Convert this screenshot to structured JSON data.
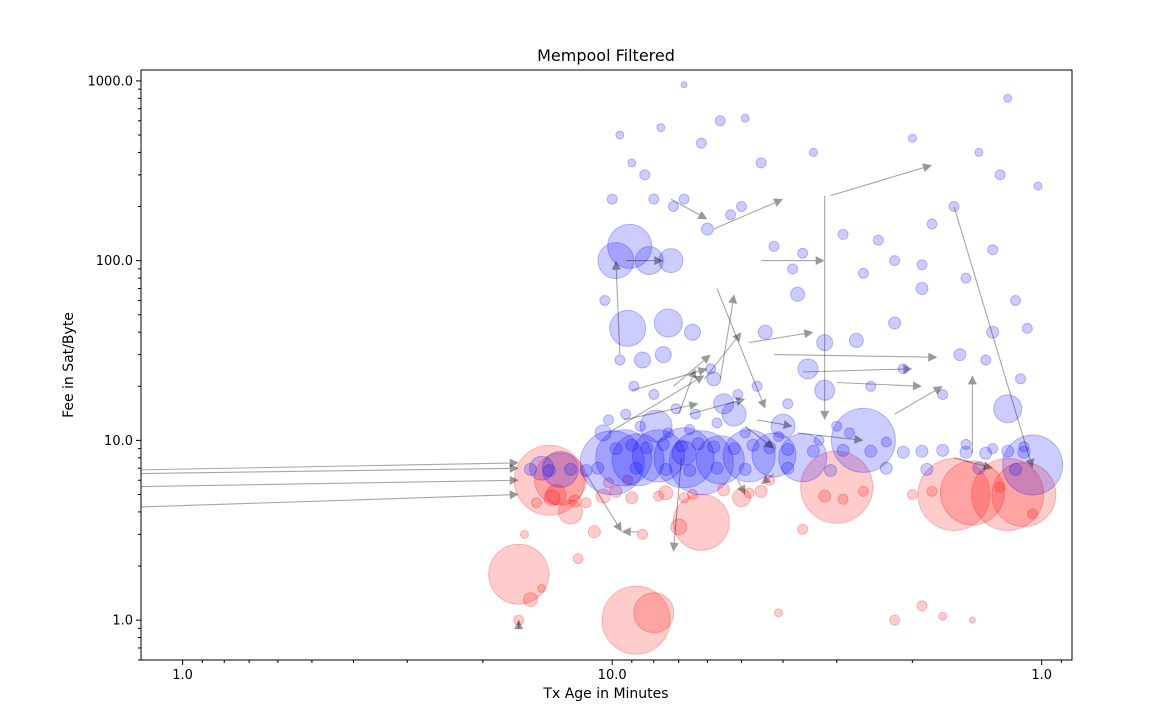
{
  "chart_data": {
    "type": "scatter",
    "title": "Mempool Filtered",
    "xlabel": "Tx Age in Minutes",
    "ylabel": "Fee in Sat/Byte",
    "x_scale": "log-reversed",
    "y_scale": "log",
    "xlim": [
      125,
      0.85
    ],
    "ylim": [
      0.6,
      1150
    ],
    "x_tick_labels": [
      "10.0",
      "1.0"
    ],
    "y_tick_labels": [
      "1000.0",
      "100.0",
      "10.0",
      "1.0"
    ],
    "grid": false,
    "colors": {
      "low_fee": "#ff0000",
      "high_fee": "#0000ff",
      "arrows": "#000000"
    },
    "series": [
      {
        "points": [
          [
            16.5,
            1.8,
            30
          ],
          [
            8.8,
            1.0,
            34
          ],
          [
            6.2,
            3.5,
            28
          ],
          [
            8.0,
            1.1,
            20
          ],
          [
            14.0,
            6.0,
            35
          ],
          [
            13.2,
            6.1,
            26
          ],
          [
            3.0,
            5.5,
            36
          ],
          [
            1.6,
            5.0,
            36
          ],
          [
            1.45,
            5.1,
            32
          ],
          [
            1.2,
            5.0,
            36
          ],
          [
            1.1,
            5.0,
            32
          ],
          [
            13.5,
            5.0,
            10
          ],
          [
            12.5,
            4.0,
            12
          ],
          [
            15.5,
            1.3,
            7
          ],
          [
            16.5,
            1.0,
            5
          ],
          [
            7.0,
            3.3,
            8
          ],
          [
            5.0,
            4.8,
            9
          ],
          [
            3.6,
            3.2,
            5
          ],
          [
            2.2,
            1.0,
            5
          ],
          [
            1.9,
            1.2,
            5
          ],
          [
            1.7,
            1.05,
            4
          ],
          [
            1.45,
            1.0,
            3
          ],
          [
            4.1,
            1.1,
            4
          ],
          [
            12.0,
            2.2,
            5
          ],
          [
            11.0,
            3.1,
            6
          ],
          [
            9.0,
            4.8,
            6
          ],
          [
            8.5,
            3.0,
            5
          ],
          [
            10.5,
            4.9,
            7
          ],
          [
            9.8,
            5.2,
            6
          ],
          [
            11.5,
            4.5,
            5
          ],
          [
            15.0,
            4.5,
            5
          ],
          [
            13.8,
            4.8,
            8
          ],
          [
            12.2,
            4.6,
            6
          ],
          [
            7.5,
            5.1,
            7
          ],
          [
            6.8,
            4.8,
            5
          ],
          [
            5.5,
            5.3,
            6
          ],
          [
            4.5,
            5.2,
            6
          ],
          [
            3.2,
            4.9,
            6
          ],
          [
            2.9,
            4.7,
            5
          ],
          [
            2.6,
            5.2,
            5
          ],
          [
            2.0,
            5.0,
            5
          ],
          [
            1.8,
            5.2,
            5
          ],
          [
            1.25,
            5.5,
            5
          ],
          [
            1.05,
            3.9,
            5
          ],
          [
            14.6,
            1.5,
            4
          ],
          [
            16.0,
            3.0,
            4
          ],
          [
            10.2,
            5.8,
            5
          ],
          [
            9.2,
            6.0,
            5
          ],
          [
            7.8,
            4.9,
            5
          ],
          [
            6.5,
            5.0,
            5
          ],
          [
            4.8,
            5.1,
            5
          ],
          [
            4.3,
            6.0,
            5
          ]
        ]
      },
      {
        "points": [
          [
            10.0,
            7.5,
            32
          ],
          [
            9.4,
            8.0,
            28
          ],
          [
            8.7,
            7.8,
            26
          ],
          [
            7.8,
            8.2,
            26
          ],
          [
            6.8,
            8.0,
            30
          ],
          [
            6.2,
            7.5,
            32
          ],
          [
            5.6,
            7.8,
            24
          ],
          [
            4.8,
            8.2,
            26
          ],
          [
            4.2,
            8.3,
            22
          ],
          [
            3.6,
            8.0,
            24
          ],
          [
            2.6,
            10.0,
            32
          ],
          [
            1.05,
            7.3,
            30
          ],
          [
            9.8,
            100.0,
            18
          ],
          [
            9.1,
            120.0,
            22
          ],
          [
            8.2,
            100.0,
            14
          ],
          [
            7.3,
            100.0,
            12
          ],
          [
            9.2,
            42.0,
            18
          ],
          [
            7.4,
            45.0,
            14
          ],
          [
            7.9,
            12.0,
            16
          ],
          [
            3.5,
            25.0,
            10
          ],
          [
            3.2,
            19.0,
            10
          ],
          [
            1.2,
            15.0,
            14
          ],
          [
            13.2,
            6.9,
            18
          ],
          [
            14.6,
            7.0,
            12
          ],
          [
            5.5,
            16.0,
            10
          ],
          [
            6.8,
            8.5,
            12
          ],
          [
            5.2,
            14.0,
            12
          ],
          [
            4.0,
            12.0,
            12
          ],
          [
            10.5,
            11.0,
            8
          ],
          [
            8.5,
            28.0,
            8
          ],
          [
            7.6,
            30.0,
            8
          ],
          [
            6.5,
            40.0,
            8
          ],
          [
            5.8,
            22.0,
            7
          ],
          [
            4.4,
            40.0,
            7
          ],
          [
            3.7,
            65.0,
            7
          ],
          [
            3.2,
            35.0,
            8
          ],
          [
            2.7,
            36.0,
            7
          ],
          [
            2.2,
            45.0,
            6
          ],
          [
            1.9,
            70.0,
            6
          ],
          [
            1.55,
            30.0,
            6
          ],
          [
            1.3,
            40.0,
            6
          ],
          [
            1.08,
            42.0,
            5
          ],
          [
            9.6,
            500.0,
            4
          ],
          [
            9.0,
            350.0,
            4
          ],
          [
            7.7,
            550.0,
            4
          ],
          [
            6.2,
            450.0,
            5
          ],
          [
            5.6,
            600.0,
            5
          ],
          [
            4.9,
            620.0,
            4
          ],
          [
            3.4,
            400.0,
            4
          ],
          [
            2.0,
            480.0,
            4
          ],
          [
            1.4,
            400.0,
            4
          ],
          [
            1.2,
            800.0,
            4
          ],
          [
            1.02,
            260.0,
            4
          ],
          [
            6.8,
            950.0,
            3
          ],
          [
            8.4,
            300.0,
            5
          ],
          [
            7.2,
            200.0,
            5
          ],
          [
            6.0,
            150.0,
            6
          ],
          [
            5.0,
            200.0,
            5
          ],
          [
            4.2,
            120.0,
            5
          ],
          [
            3.6,
            110.0,
            5
          ],
          [
            2.9,
            140.0,
            5
          ],
          [
            2.4,
            130.0,
            5
          ],
          [
            1.8,
            160.0,
            5
          ],
          [
            1.6,
            200.0,
            5
          ],
          [
            1.25,
            300.0,
            5
          ],
          [
            1.15,
            60.0,
            5
          ],
          [
            10.4,
            60.0,
            5
          ],
          [
            9.6,
            28.0,
            5
          ],
          [
            8.9,
            20.0,
            5
          ],
          [
            8.0,
            18.0,
            5
          ],
          [
            7.1,
            15.0,
            5
          ],
          [
            6.4,
            14.0,
            5
          ],
          [
            5.9,
            25.0,
            5
          ],
          [
            5.1,
            18.0,
            5
          ],
          [
            4.6,
            20.0,
            5
          ],
          [
            3.9,
            16.0,
            5
          ],
          [
            3.0,
            12.0,
            5
          ],
          [
            2.5,
            20.0,
            5
          ],
          [
            2.1,
            25.0,
            5
          ],
          [
            1.7,
            18.0,
            5
          ],
          [
            1.35,
            28.0,
            5
          ],
          [
            1.12,
            22.0,
            5
          ],
          [
            10.2,
            13.0,
            5
          ],
          [
            9.3,
            14.0,
            5
          ],
          [
            8.6,
            12.0,
            5
          ],
          [
            7.4,
            11.0,
            5
          ],
          [
            6.6,
            11.5,
            5
          ],
          [
            5.7,
            12.5,
            5
          ],
          [
            4.9,
            11.0,
            5
          ],
          [
            4.1,
            10.5,
            5
          ],
          [
            3.3,
            10.0,
            5
          ],
          [
            2.8,
            11.0,
            5
          ],
          [
            2.3,
            9.8,
            5
          ],
          [
            1.5,
            9.5,
            5
          ],
          [
            1.3,
            9.0,
            5
          ],
          [
            1.1,
            9.2,
            5
          ],
          [
            10.0,
            220.0,
            5
          ],
          [
            8.0,
            220.0,
            5
          ],
          [
            6.8,
            220.0,
            5
          ],
          [
            5.3,
            180.0,
            5
          ],
          [
            4.5,
            350.0,
            5
          ],
          [
            3.8,
            90.0,
            5
          ],
          [
            2.6,
            85.0,
            5
          ],
          [
            2.2,
            100.0,
            5
          ],
          [
            1.9,
            95.0,
            5
          ],
          [
            1.5,
            80.0,
            5
          ],
          [
            1.3,
            115.0,
            5
          ],
          [
            9.8,
            9.0,
            6
          ],
          [
            9.0,
            9.4,
            6
          ],
          [
            8.3,
            9.1,
            6
          ],
          [
            7.6,
            9.5,
            6
          ],
          [
            6.9,
            9.3,
            6
          ],
          [
            6.3,
            9.6,
            6
          ],
          [
            5.8,
            9.2,
            6
          ],
          [
            5.2,
            9.0,
            6
          ],
          [
            4.7,
            9.4,
            6
          ],
          [
            4.3,
            9.1,
            6
          ],
          [
            3.9,
            8.9,
            6
          ],
          [
            3.4,
            8.7,
            6
          ],
          [
            2.9,
            8.8,
            6
          ],
          [
            2.5,
            8.7,
            6
          ],
          [
            2.1,
            8.6,
            6
          ],
          [
            1.9,
            8.7,
            6
          ],
          [
            1.7,
            8.8,
            6
          ],
          [
            1.5,
            8.6,
            6
          ],
          [
            1.35,
            8.5,
            6
          ],
          [
            1.2,
            8.7,
            6
          ],
          [
            1.1,
            8.6,
            6
          ],
          [
            15.5,
            6.9,
            6
          ],
          [
            14.0,
            6.8,
            6
          ],
          [
            12.5,
            6.9,
            6
          ],
          [
            11.5,
            6.8,
            6
          ],
          [
            10.8,
            7.0,
            6
          ],
          [
            8.8,
            7.0,
            6
          ],
          [
            7.5,
            6.9,
            6
          ],
          [
            6.6,
            6.8,
            6
          ],
          [
            5.7,
            7.0,
            6
          ],
          [
            4.9,
            6.9,
            6
          ],
          [
            3.9,
            7.0,
            6
          ],
          [
            3.1,
            6.8,
            6
          ],
          [
            2.3,
            7.0,
            6
          ],
          [
            1.85,
            6.9,
            6
          ],
          [
            1.4,
            7.0,
            6
          ],
          [
            1.15,
            6.9,
            6
          ]
        ]
      }
    ],
    "arrows": [
      [
        150.0,
        6.8,
        16.5,
        7.5
      ],
      [
        150.0,
        6.5,
        16.5,
        7.0
      ],
      [
        150.0,
        5.5,
        16.5,
        6.0
      ],
      [
        150.0,
        4.2,
        16.5,
        5.0
      ],
      [
        9.6,
        30.0,
        9.8,
        100.0
      ],
      [
        9.3,
        100.0,
        7.6,
        100.0
      ],
      [
        7.3,
        220.0,
        6.0,
        170.0
      ],
      [
        5.8,
        150.0,
        4.0,
        220.0
      ],
      [
        3.1,
        230.0,
        1.8,
        340.0
      ],
      [
        3.2,
        230.0,
        3.2,
        13.0
      ],
      [
        4.5,
        100.0,
        3.2,
        100.0
      ],
      [
        5.7,
        70.0,
        4.4,
        15.0
      ],
      [
        7.2,
        20.0,
        5.9,
        30.0
      ],
      [
        7.0,
        14.0,
        6.4,
        25.0
      ],
      [
        6.1,
        22.0,
        5.0,
        40.0
      ],
      [
        4.8,
        35.0,
        3.4,
        40.0
      ],
      [
        4.2,
        30.0,
        1.75,
        29.0
      ],
      [
        3.6,
        24.0,
        2.0,
        25.0
      ],
      [
        3.0,
        21.0,
        1.9,
        20.0
      ],
      [
        6.6,
        14.0,
        4.9,
        17.0
      ],
      [
        4.6,
        13.0,
        3.8,
        12.0
      ],
      [
        3.7,
        11.0,
        2.6,
        10.0
      ],
      [
        11.5,
        6.5,
        9.5,
        3.1
      ],
      [
        8.7,
        3.1,
        9.5,
        3.1
      ],
      [
        6.9,
        8.0,
        7.2,
        2.4
      ],
      [
        5.1,
        6.0,
        4.9,
        5.0
      ],
      [
        4.2,
        6.5,
        4.5,
        5.7
      ],
      [
        16.5,
        1.0,
        16.5,
        1.0
      ],
      [
        1.6,
        200.0,
        1.05,
        7.0
      ],
      [
        1.6,
        8.0,
        1.3,
        7.0
      ],
      [
        1.45,
        8.5,
        1.45,
        23.0
      ],
      [
        2.2,
        14.0,
        1.7,
        20.0
      ],
      [
        5.6,
        22.0,
        5.2,
        65.0
      ],
      [
        9.0,
        19.0,
        6.0,
        25.0
      ],
      [
        10.2,
        11.0,
        6.1,
        23.0
      ],
      [
        9.4,
        13.0,
        6.3,
        16.0
      ],
      [
        4.9,
        12.0,
        4.2,
        9.0
      ]
    ]
  }
}
